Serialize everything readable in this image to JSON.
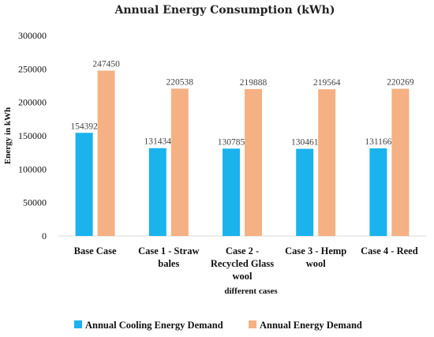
{
  "chart_data": {
    "type": "bar",
    "title": "Annual Energy Consumption (kWh)",
    "xlabel": "different cases",
    "ylabel": "Energy in kWh",
    "ylim": [
      0,
      300000
    ],
    "yticks": [
      "0",
      "50000",
      "100000",
      "150000",
      "200000",
      "250000",
      "300000"
    ],
    "categories": [
      [
        "Base Case"
      ],
      [
        "Case 1 - Straw",
        "bales"
      ],
      [
        "Case 2 -",
        "Recycled Glass",
        "wool"
      ],
      [
        "Case 3 - Hemp",
        "wool"
      ],
      [
        "Case 4 - Reed"
      ]
    ],
    "series": [
      {
        "name": "Annual Cooling Energy Demand",
        "color": "#1ab3ee",
        "values": [
          154392,
          131434,
          130785,
          130461,
          131166
        ]
      },
      {
        "name": "Annual Energy Demand",
        "color": "#f5b183",
        "values": [
          247450,
          220538,
          219888,
          219564,
          220269
        ]
      }
    ],
    "grid": false,
    "legend_position": "bottom"
  }
}
